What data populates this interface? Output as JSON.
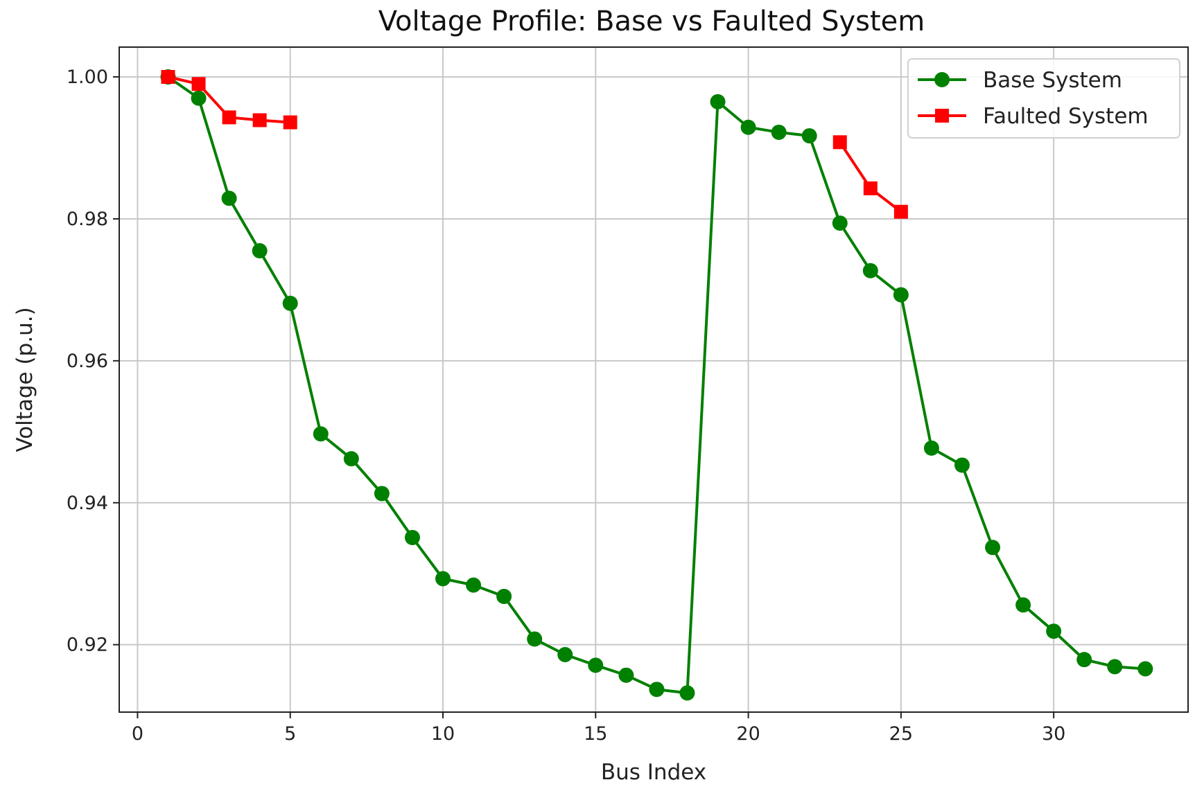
{
  "chart_data": {
    "type": "line",
    "title": "Voltage Profile: Base vs Faulted System",
    "xlabel": "Bus Index",
    "ylabel": "Voltage (p.u.)",
    "xlim": [
      -0.6,
      34.4
    ],
    "ylim": [
      0.9105,
      1.0042
    ],
    "xticks": [
      0,
      5,
      10,
      15,
      20,
      25,
      30
    ],
    "xtick_labels": [
      "0",
      "5",
      "10",
      "15",
      "20",
      "25",
      "30"
    ],
    "yticks": [
      0.92,
      0.94,
      0.96,
      0.98,
      1.0
    ],
    "ytick_labels": [
      "0.92",
      "0.94",
      "0.96",
      "0.98",
      "1.00"
    ],
    "grid": true,
    "legend_position": "top-right",
    "series": [
      {
        "name": "Base System",
        "color": "#008000",
        "marker": "circle",
        "segments": [
          {
            "x": [
              1,
              2,
              3,
              4,
              5,
              6,
              7,
              8,
              9,
              10,
              11,
              12,
              13,
              14,
              15,
              16,
              17,
              18,
              19,
              20,
              21,
              22,
              23,
              24,
              25,
              26,
              27,
              28,
              29,
              30,
              31,
              32,
              33
            ],
            "y": [
              1.0,
              0.997,
              0.9829,
              0.9755,
              0.9681,
              0.9497,
              0.9462,
              0.9413,
              0.9351,
              0.9293,
              0.9284,
              0.9268,
              0.9208,
              0.9186,
              0.9171,
              0.9157,
              0.9137,
              0.9132,
              0.9965,
              0.9929,
              0.9922,
              0.9917,
              0.9794,
              0.9727,
              0.9693,
              0.9477,
              0.9453,
              0.9337,
              0.9256,
              0.9219,
              0.9179,
              0.9169,
              0.9166
            ]
          }
        ]
      },
      {
        "name": "Faulted System",
        "color": "#ff0000",
        "marker": "square",
        "segments": [
          {
            "x": [
              1,
              2,
              3,
              4,
              5
            ],
            "y": [
              1.0,
              0.999,
              0.9943,
              0.9939,
              0.9936
            ]
          },
          {
            "x": [
              23,
              24,
              25
            ],
            "y": [
              0.9908,
              0.9843,
              0.981
            ]
          }
        ]
      }
    ]
  }
}
